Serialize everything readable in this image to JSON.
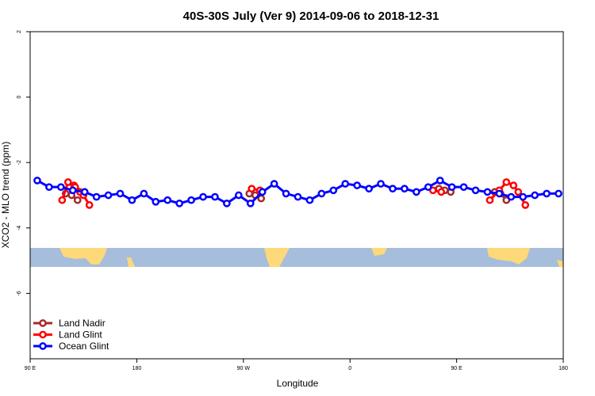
{
  "chart_data": {
    "type": "line",
    "title": "40S-30S July (Ver 9)   2014-09-06 to 2018-12-31",
    "xlabel": "Longitude",
    "ylabel": "XCO2 - MLO trend (ppm)",
    "xlim": [
      90,
      540
    ],
    "ylim": [
      -8,
      2
    ],
    "x_ticks": [
      {
        "value": 90,
        "label": "90 E"
      },
      {
        "value": 180,
        "label": "180"
      },
      {
        "value": 270,
        "label": "90 W"
      },
      {
        "value": 360,
        "label": "0"
      },
      {
        "value": 450,
        "label": "90 E"
      },
      {
        "value": 540,
        "label": "180"
      }
    ],
    "y_ticks": [
      {
        "value": 2,
        "label": "2"
      },
      {
        "value": 0,
        "label": "0"
      },
      {
        "value": -2,
        "label": "-2"
      },
      {
        "value": -4,
        "label": "-4"
      },
      {
        "value": -6,
        "label": "-6"
      }
    ],
    "grid": false,
    "legend_position": "bottom-left",
    "colors": {
      "ocean": "#a6bddb",
      "land": "#fdd97a"
    },
    "series": [
      {
        "name": "Land Nadir",
        "color": "#a52a2a",
        "x": [
          120,
          125,
          130,
          275,
          280,
          285,
          435,
          440,
          445,
          482,
          487,
          492
        ],
        "y": [
          -2.95,
          -3.0,
          -3.15,
          -2.95,
          -3.0,
          -3.1,
          -2.8,
          -2.85,
          -2.9,
          -2.9,
          -2.95,
          -3.15
        ]
      },
      {
        "name": "Land Glint",
        "color": "#ff0000",
        "x": [
          117,
          122,
          127,
          132,
          135,
          140,
          128,
          136,
          277,
          284,
          430,
          437,
          478,
          486,
          492,
          498,
          502,
          508
        ],
        "y": [
          -3.15,
          -2.6,
          -2.7,
          -2.9,
          -3.0,
          -3.3,
          -2.75,
          -2.9,
          -2.8,
          -2.85,
          -2.85,
          -2.9,
          -3.15,
          -2.85,
          -2.6,
          -2.7,
          -2.9,
          -3.3
        ]
      },
      {
        "name": "Ocean Glint",
        "color": "#0000ff",
        "x": [
          96,
          106,
          116,
          126,
          136,
          146,
          156,
          166,
          176,
          186,
          196,
          206,
          216,
          226,
          236,
          246,
          256,
          266,
          276,
          286,
          296,
          306,
          316,
          326,
          336,
          346,
          356,
          366,
          376,
          386,
          396,
          406,
          416,
          426,
          436,
          446,
          456,
          466,
          476,
          486,
          496,
          506,
          516,
          526,
          536
        ],
        "y": [
          -2.55,
          -2.75,
          -2.75,
          -2.85,
          -2.9,
          -3.05,
          -3.0,
          -2.95,
          -3.15,
          -2.95,
          -3.2,
          -3.15,
          -3.25,
          -3.15,
          -3.05,
          -3.05,
          -3.25,
          -3.0,
          -3.25,
          -2.9,
          -2.65,
          -2.95,
          -3.05,
          -3.15,
          -2.95,
          -2.85,
          -2.65,
          -2.7,
          -2.8,
          -2.65,
          -2.8,
          -2.8,
          -2.9,
          -2.75,
          -2.55,
          -2.75,
          -2.75,
          -2.85,
          -2.9,
          -2.95,
          -3.05,
          -3.05,
          -3.0,
          -2.95,
          -2.95
        ]
      }
    ]
  }
}
